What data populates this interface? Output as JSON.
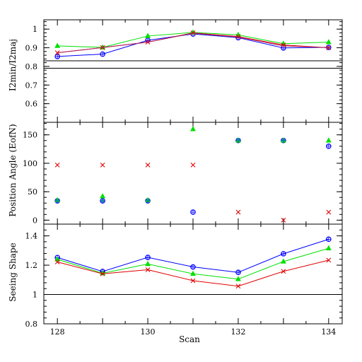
{
  "chart_data": [
    {
      "type": "line",
      "ylabel": "I2min/I2maj",
      "ylim": [
        0.5,
        1.05
      ],
      "yticks": [
        {
          "v": 0.6,
          "label": "0.6"
        },
        {
          "v": 0.7,
          "label": "0.7"
        },
        {
          "v": 0.8,
          "label": "0.8"
        },
        {
          "v": 0.9,
          "label": "0.9"
        },
        {
          "v": 1.0,
          "label": "1"
        }
      ],
      "reference_lines": [
        0.83,
        0.79
      ],
      "x": [
        128,
        129,
        130,
        131,
        132,
        133,
        134
      ],
      "series": [
        {
          "color": "#0000ff",
          "marker": "circle",
          "line": true,
          "values": [
            0.853,
            0.866,
            0.94,
            0.974,
            0.954,
            0.899,
            0.902
          ]
        },
        {
          "color": "#00e000",
          "marker": "triangle",
          "line": true,
          "values": [
            0.91,
            0.902,
            0.963,
            0.982,
            0.969,
            0.922,
            0.93
          ]
        },
        {
          "color": "#e00000",
          "marker": "x",
          "line": true,
          "values": [
            0.873,
            0.901,
            0.93,
            0.98,
            0.96,
            0.915,
            0.9
          ]
        },
        {
          "color": "#aa2266",
          "marker": "none",
          "line": true,
          "values": [
            0.873,
            0.901,
            0.93,
            0.978,
            0.957,
            0.91,
            0.9
          ]
        }
      ]
    },
    {
      "type": "scatter",
      "ylabel": "Position Angle (EofN)",
      "ylim": [
        -7,
        172
      ],
      "yticks": [
        {
          "v": 0,
          "label": "0"
        },
        {
          "v": 50,
          "label": "50"
        },
        {
          "v": 100,
          "label": "100"
        },
        {
          "v": 150,
          "label": "150"
        }
      ],
      "x": [
        128,
        129,
        130,
        131,
        132,
        133,
        134
      ],
      "series": [
        {
          "color": "#0000ff",
          "marker": "circle",
          "line": false,
          "values": [
            34,
            34,
            34,
            14,
            140,
            140,
            130
          ]
        },
        {
          "color": "#00e000",
          "marker": "triangle",
          "line": false,
          "values": [
            35,
            42,
            35,
            160,
            140,
            140,
            140
          ]
        },
        {
          "color": "#e00000",
          "marker": "x",
          "line": false,
          "values": [
            97,
            97,
            97,
            97,
            14,
            0,
            14
          ]
        },
        {
          "color": "#009090",
          "marker": "dot",
          "line": false,
          "values": [
            34,
            34,
            34,
            null,
            140,
            140,
            null
          ]
        }
      ]
    },
    {
      "type": "line",
      "ylabel": "Seeing Shape",
      "xlabel": "Scan",
      "ylim": [
        0.8,
        1.48
      ],
      "yticks": [
        {
          "v": 0.8,
          "label": "0.8"
        },
        {
          "v": 1.0,
          "label": "1"
        },
        {
          "v": 1.2,
          "label": "1.2"
        },
        {
          "v": 1.4,
          "label": "1.4"
        }
      ],
      "reference_lines": [
        1.0
      ],
      "x": [
        128,
        129,
        130,
        131,
        132,
        133,
        134
      ],
      "xticks": [
        {
          "v": 128,
          "label": "128"
        },
        {
          "v": 130,
          "label": "130"
        },
        {
          "v": 132,
          "label": "132"
        },
        {
          "v": 134,
          "label": "134"
        }
      ],
      "series": [
        {
          "color": "#0000ff",
          "marker": "circle",
          "line": true,
          "values": [
            1.252,
            1.157,
            1.253,
            1.188,
            1.151,
            1.278,
            1.377
          ]
        },
        {
          "color": "#00e000",
          "marker": "triangle",
          "line": true,
          "values": [
            1.24,
            1.145,
            1.208,
            1.141,
            1.105,
            1.225,
            1.315
          ]
        },
        {
          "color": "#e00000",
          "marker": "x",
          "line": true,
          "values": [
            1.222,
            1.141,
            1.169,
            1.094,
            1.057,
            1.158,
            1.234
          ]
        }
      ]
    }
  ],
  "axes": {
    "xlim": [
      127.7,
      134.3
    ],
    "minor_x_step": 0.5
  },
  "colors": {
    "axis": "#000000",
    "reference_line": "#000000"
  }
}
